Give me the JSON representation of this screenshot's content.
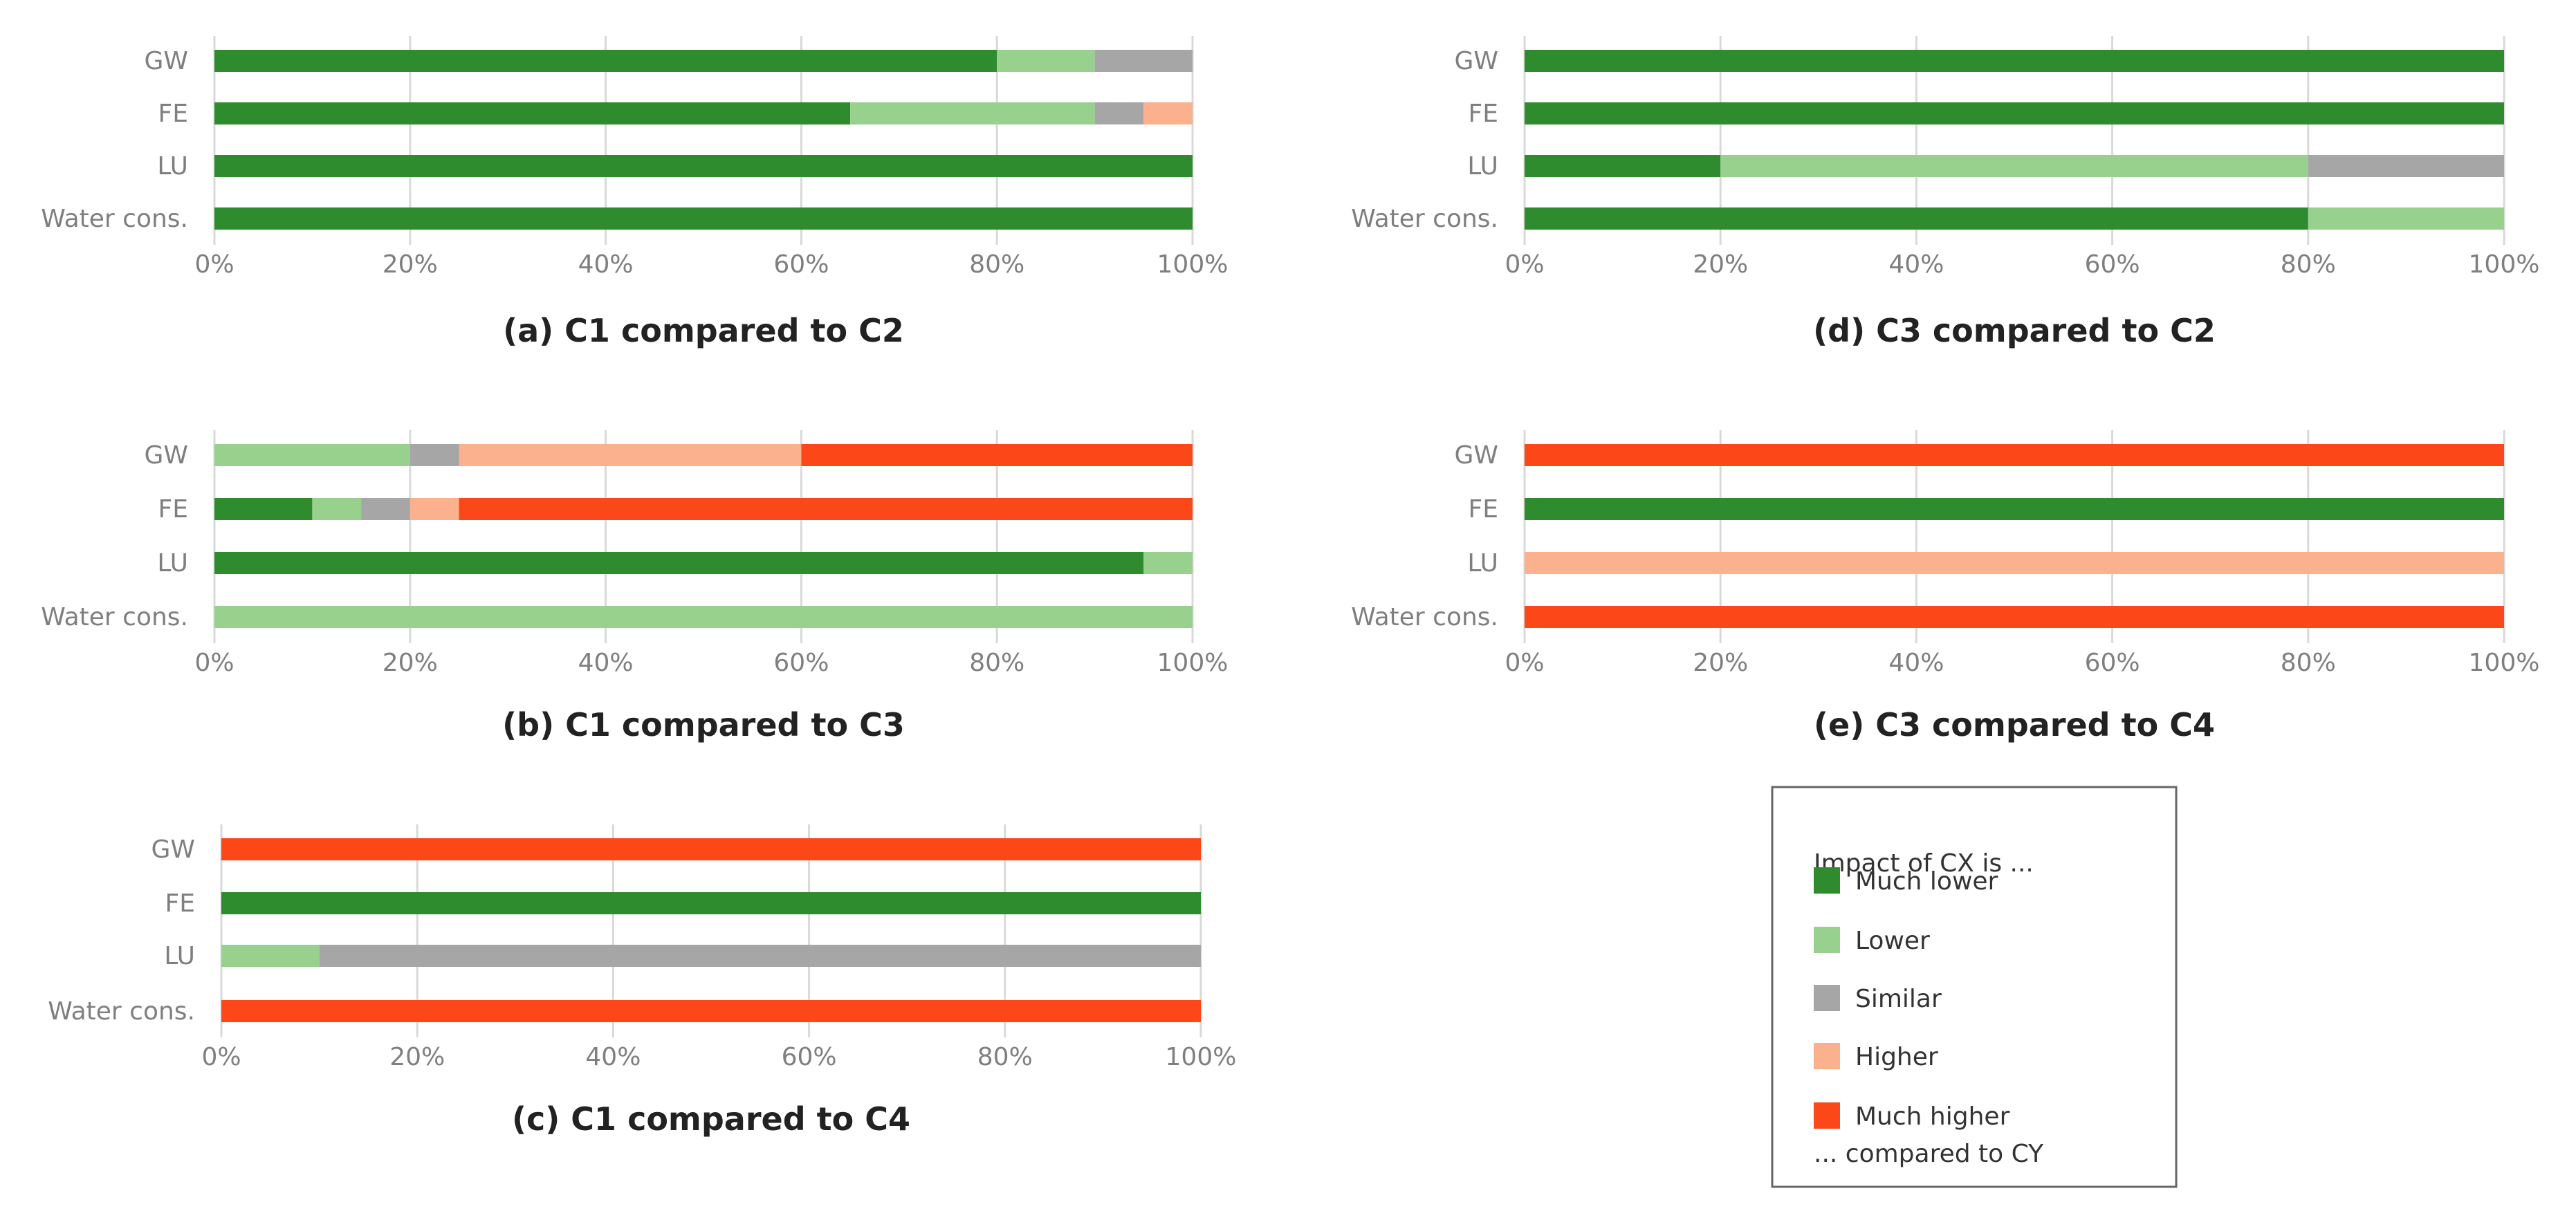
{
  "legend": {
    "title": "Impact of CX is ...",
    "footer": "... compared to CY",
    "items": [
      {
        "label": "Much lower",
        "color": "#2e8b2e"
      },
      {
        "label": "Lower",
        "color": "#98d18e"
      },
      {
        "label": "Similar",
        "color": "#a6a6a6"
      },
      {
        "label": "Higher",
        "color": "#fbb08e"
      },
      {
        "label": "Much higher",
        "color": "#fc4718"
      }
    ]
  },
  "chart_data": [
    {
      "type": "bar",
      "orientation": "horizontal",
      "stacked": true,
      "title": "(a) C1 compared to C2",
      "categories": [
        "GW",
        "FE",
        "LU",
        "Water cons."
      ],
      "xlim": [
        0,
        100
      ],
      "xticks": [
        "0%",
        "20%",
        "40%",
        "60%",
        "80%",
        "100%"
      ],
      "series": [
        {
          "name": "Much lower",
          "values": [
            80,
            65,
            100,
            100
          ]
        },
        {
          "name": "Lower",
          "values": [
            10,
            25,
            0,
            0
          ]
        },
        {
          "name": "Similar",
          "values": [
            10,
            5,
            0,
            0
          ]
        },
        {
          "name": "Higher",
          "values": [
            0,
            5,
            0,
            0
          ]
        },
        {
          "name": "Much higher",
          "values": [
            0,
            0,
            0,
            0
          ]
        }
      ]
    },
    {
      "type": "bar",
      "orientation": "horizontal",
      "stacked": true,
      "title": "(b) C1 compared to C3",
      "categories": [
        "GW",
        "FE",
        "LU",
        "Water cons."
      ],
      "xlim": [
        0,
        100
      ],
      "xticks": [
        "0%",
        "20%",
        "40%",
        "60%",
        "80%",
        "100%"
      ],
      "series": [
        {
          "name": "Much lower",
          "values": [
            0,
            10,
            95,
            0
          ]
        },
        {
          "name": "Lower",
          "values": [
            20,
            5,
            5,
            100
          ]
        },
        {
          "name": "Similar",
          "values": [
            5,
            5,
            0,
            0
          ]
        },
        {
          "name": "Higher",
          "values": [
            35,
            5,
            0,
            0
          ]
        },
        {
          "name": "Much higher",
          "values": [
            40,
            75,
            0,
            0
          ]
        }
      ]
    },
    {
      "type": "bar",
      "orientation": "horizontal",
      "stacked": true,
      "title": "(c) C1 compared to C4",
      "categories": [
        "GW",
        "FE",
        "LU",
        "Water cons."
      ],
      "xlim": [
        0,
        100
      ],
      "xticks": [
        "0%",
        "20%",
        "40%",
        "60%",
        "80%",
        "100%"
      ],
      "series": [
        {
          "name": "Much lower",
          "values": [
            0,
            100,
            0,
            0
          ]
        },
        {
          "name": "Lower",
          "values": [
            0,
            0,
            10,
            0
          ]
        },
        {
          "name": "Similar",
          "values": [
            0,
            0,
            90,
            0
          ]
        },
        {
          "name": "Higher",
          "values": [
            0,
            0,
            0,
            0
          ]
        },
        {
          "name": "Much higher",
          "values": [
            100,
            0,
            0,
            100
          ]
        }
      ]
    },
    {
      "type": "bar",
      "orientation": "horizontal",
      "stacked": true,
      "title": "(d) C3 compared to C2",
      "categories": [
        "GW",
        "FE",
        "LU",
        "Water cons."
      ],
      "xlim": [
        0,
        100
      ],
      "xticks": [
        "0%",
        "20%",
        "40%",
        "60%",
        "80%",
        "100%"
      ],
      "series": [
        {
          "name": "Much lower",
          "values": [
            100,
            100,
            20,
            80
          ]
        },
        {
          "name": "Lower",
          "values": [
            0,
            0,
            60,
            20
          ]
        },
        {
          "name": "Similar",
          "values": [
            0,
            0,
            20,
            0
          ]
        },
        {
          "name": "Higher",
          "values": [
            0,
            0,
            0,
            0
          ]
        },
        {
          "name": "Much higher",
          "values": [
            0,
            0,
            0,
            0
          ]
        }
      ]
    },
    {
      "type": "bar",
      "orientation": "horizontal",
      "stacked": true,
      "title": "(e) C3 compared to C4",
      "categories": [
        "GW",
        "FE",
        "LU",
        "Water cons."
      ],
      "xlim": [
        0,
        100
      ],
      "xticks": [
        "0%",
        "20%",
        "40%",
        "60%",
        "80%",
        "100%"
      ],
      "series": [
        {
          "name": "Much lower",
          "values": [
            0,
            100,
            0,
            0
          ]
        },
        {
          "name": "Lower",
          "values": [
            0,
            0,
            0,
            0
          ]
        },
        {
          "name": "Similar",
          "values": [
            0,
            0,
            0,
            0
          ]
        },
        {
          "name": "Higher",
          "values": [
            0,
            0,
            100,
            0
          ]
        },
        {
          "name": "Much higher",
          "values": [
            100,
            0,
            0,
            100
          ]
        }
      ]
    }
  ]
}
